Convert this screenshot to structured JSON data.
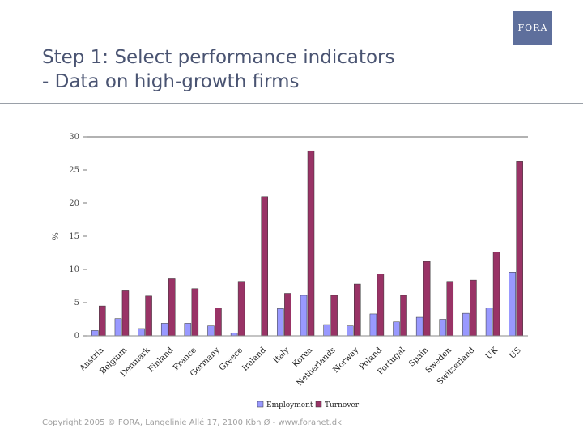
{
  "slide": {
    "title_line1": "Step 1: Select performance indicators",
    "title_line2": "- Data on high-growth firms",
    "logo_text": "FORA",
    "copyright": "Copyright 2005 © FORA, Langelinie Allé 17, 2100 Kbh Ø - www.foranet.dk"
  },
  "chart_data": {
    "type": "bar",
    "title": "",
    "xlabel": "",
    "ylabel": "%",
    "ylim": [
      0,
      30
    ],
    "yticks": [
      0,
      5,
      10,
      15,
      20,
      25,
      30
    ],
    "grid": false,
    "legend_position": "bottom",
    "categories": [
      "Austria",
      "Belgium",
      "Denmark",
      "Finland",
      "France",
      "Germany",
      "Greece",
      "Ireland",
      "Italy",
      "Korea",
      "Netherlands",
      "Norway",
      "Poland",
      "Portugal",
      "Spain",
      "Sweden",
      "Switzerland",
      "UK",
      "US"
    ],
    "series": [
      {
        "name": "Employment",
        "color": "#9999ff",
        "values": [
          0.8,
          2.6,
          1.1,
          1.9,
          1.9,
          1.5,
          0.4,
          null,
          4.1,
          6.1,
          1.7,
          1.5,
          3.3,
          2.1,
          2.8,
          2.5,
          3.4,
          4.2,
          9.6
        ]
      },
      {
        "name": "Turnover",
        "color": "#993366",
        "values": [
          4.5,
          6.9,
          6.0,
          8.6,
          7.1,
          4.2,
          8.2,
          21.0,
          6.4,
          27.9,
          6.1,
          7.8,
          9.3,
          6.1,
          11.2,
          8.2,
          8.4,
          12.6,
          26.3
        ]
      }
    ]
  }
}
